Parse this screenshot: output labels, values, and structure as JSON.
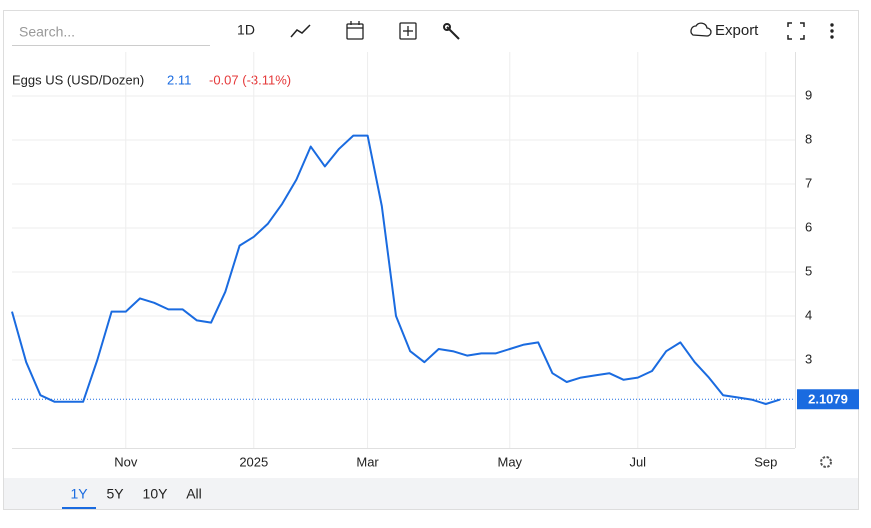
{
  "toolbar": {
    "search_placeholder": "Search...",
    "interval": "1D",
    "export": "Export"
  },
  "ranges": [
    "1Y",
    "5Y",
    "10Y",
    "All"
  ],
  "chart_data": {
    "type": "line",
    "title": "Eggs US (USD/Dozen)",
    "last": 2.11,
    "change": "-0.07 (-3.11%)",
    "price_label": 2.1079,
    "categories": [
      null,
      null,
      null,
      null,
      null,
      null,
      null,
      null,
      "Nov",
      null,
      null,
      null,
      null,
      null,
      null,
      null,
      null,
      "2025",
      null,
      null,
      null,
      null,
      null,
      null,
      null,
      "Mar",
      null,
      null,
      null,
      null,
      null,
      null,
      null,
      null,
      null,
      "May",
      null,
      null,
      null,
      null,
      null,
      null,
      null,
      null,
      "Jul",
      null,
      null,
      null,
      null,
      null,
      null,
      null,
      null,
      "Sep",
      null
    ],
    "series": [
      {
        "name": "Eggs US (USD/Dozen)",
        "color": "#1a6be0",
        "values": [
          4.1,
          2.95,
          2.2,
          2.05,
          2.05,
          2.05,
          3.0,
          4.1,
          4.1,
          4.4,
          4.3,
          4.15,
          4.15,
          3.9,
          3.85,
          4.55,
          5.6,
          5.8,
          6.1,
          6.55,
          7.1,
          7.85,
          7.4,
          7.8,
          8.1,
          8.1,
          6.5,
          4.0,
          3.2,
          2.95,
          3.25,
          3.2,
          3.1,
          3.15,
          3.15,
          3.25,
          3.35,
          3.4,
          2.7,
          2.5,
          2.6,
          2.65,
          2.7,
          2.55,
          2.6,
          2.75,
          3.2,
          3.4,
          2.95,
          2.6,
          2.2,
          2.15,
          2.1,
          2.0,
          2.1
        ]
      }
    ],
    "ylim": [
      1,
      10
    ],
    "yticks": [
      3,
      4,
      5,
      6,
      7,
      8,
      9
    ],
    "grid": true
  }
}
